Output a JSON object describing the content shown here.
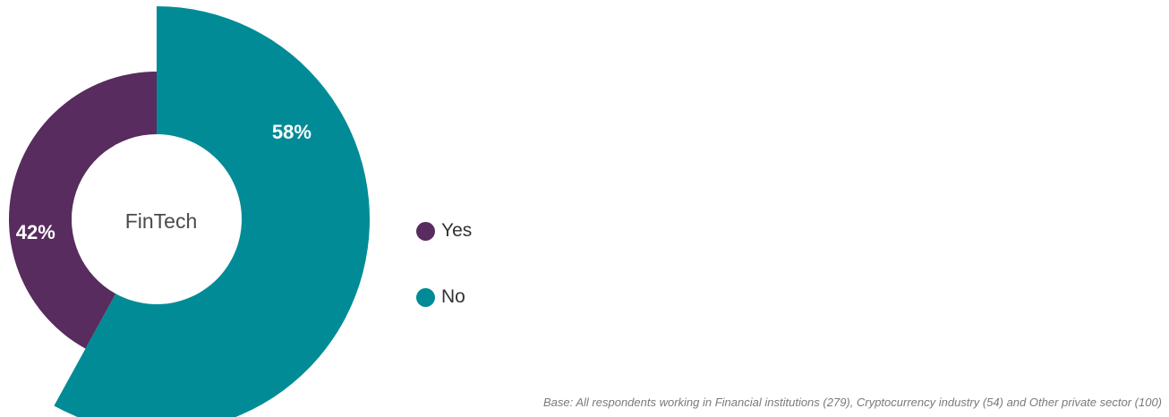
{
  "chart_data": {
    "type": "pie",
    "subtype": "donut",
    "center_label": "FinTech",
    "slices": [
      {
        "label": "Yes",
        "value": 42,
        "display": "42%",
        "color": "#582c5e"
      },
      {
        "label": "No",
        "value": 58,
        "display": "58%",
        "color": "#008b96"
      }
    ],
    "exploded_slice": "No",
    "legend_position": "right",
    "footnote": "Base: All respondents working in Financial institutions (279), Cryptocurrency industry (54) and Other private sector (100)"
  }
}
